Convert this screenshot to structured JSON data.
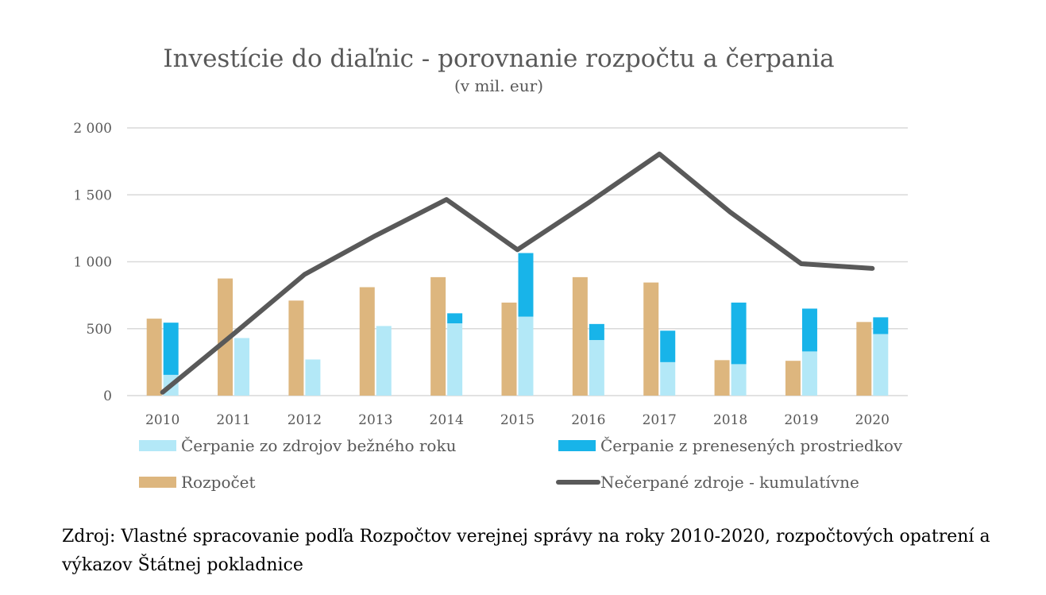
{
  "chart_data": {
    "type": "bar",
    "title": "Investície do diaľnic - porovnanie rozpočtu a čerpania",
    "subtitle": "(v mil. eur)",
    "categories": [
      "2010",
      "2011",
      "2012",
      "2013",
      "2014",
      "2015",
      "2016",
      "2017",
      "2018",
      "2019",
      "2020"
    ],
    "ylim": [
      0,
      2000
    ],
    "yticks": [
      0,
      500,
      1000,
      1500,
      2000
    ],
    "ytick_labels": [
      "0",
      "500",
      "1 000",
      "1 500",
      "2 000"
    ],
    "grid": true,
    "legend_position": "bottom",
    "series": [
      {
        "name": "Rozpočet",
        "kind": "bar",
        "color": "#DDB67E",
        "values": [
          575,
          875,
          710,
          810,
          885,
          695,
          885,
          845,
          265,
          260,
          550
        ]
      },
      {
        "name": "Čerpanie zo zdrojov bežného roku",
        "kind": "stacked-bar-base",
        "color": "#B3E8F7",
        "values": [
          155,
          430,
          270,
          520,
          540,
          590,
          415,
          250,
          235,
          330,
          460
        ]
      },
      {
        "name": "Čerpanie z prenesených prostriedkov",
        "kind": "stacked-bar-top",
        "color": "#18B4E9",
        "values": [
          390,
          0,
          0,
          0,
          75,
          475,
          120,
          235,
          460,
          320,
          125
        ]
      },
      {
        "name": "Nečerpané zdroje - kumulatívne",
        "kind": "line",
        "color": "#595959",
        "values": [
          25,
          460,
          905,
          1195,
          1465,
          1090,
          1440,
          1805,
          1370,
          985,
          950
        ]
      }
    ],
    "legend_order": [
      "Čerpanie zo zdrojov bežného roku",
      "Čerpanie z prenesených prostriedkov",
      "Rozpočet",
      "Nečerpané zdroje - kumulatívne"
    ]
  },
  "source_note": "Zdroj: Vlastné spracovanie podľa Rozpočtov verejnej správy na roky 2010-2020, rozpočtových opatrení a výkazov Štátnej pokladnice",
  "colors": {
    "grid": "#D9D9D9",
    "text": "#595959"
  }
}
